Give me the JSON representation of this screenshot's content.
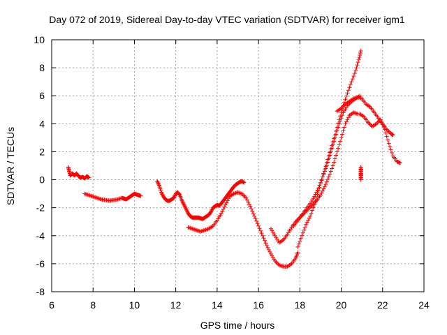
{
  "chart_data": {
    "type": "scatter",
    "title": "Day 072 of 2019, Sidereal Day-to-day VTEC variation (SDTVAR) for receiver igm1",
    "xlabel": "GPS time / hours",
    "ylabel": "SDTVAR / TECUs",
    "xlim": [
      6,
      24
    ],
    "ylim": [
      -8,
      10
    ],
    "xticks": [
      "6",
      "8",
      "10",
      "12",
      "14",
      "16",
      "18",
      "20",
      "22",
      "24"
    ],
    "yticks": [
      "-8",
      "-6",
      "-4",
      "-2",
      "0",
      "2",
      "4",
      "6",
      "8",
      "10"
    ],
    "grid": true,
    "marker": "+",
    "color": "#ff0000",
    "series": [
      {
        "name": "s1",
        "x": [
          6.8,
          6.85,
          6.9,
          7.0,
          7.1,
          7.2,
          7.3,
          7.4,
          7.5,
          7.6,
          7.7,
          7.8
        ],
        "y": [
          0.9,
          0.6,
          0.3,
          0.45,
          0.3,
          0.45,
          0.25,
          0.15,
          0.2,
          0.1,
          0.25,
          0.15
        ]
      },
      {
        "name": "s2",
        "x": [
          7.6,
          7.8,
          8.0,
          8.2,
          8.4,
          8.6,
          8.8,
          9.0,
          9.2,
          9.4,
          9.5,
          9.6,
          9.7,
          9.8,
          9.9,
          10.0,
          10.1,
          10.2,
          10.3
        ],
        "y": [
          -1.0,
          -1.1,
          -1.2,
          -1.3,
          -1.4,
          -1.45,
          -1.5,
          -1.45,
          -1.4,
          -1.3,
          -1.35,
          -1.4,
          -1.3,
          -1.2,
          -1.1,
          -1.0,
          -1.05,
          -1.1,
          -1.15
        ]
      },
      {
        "name": "s3",
        "x": [
          11.1,
          11.2,
          11.3,
          11.4,
          11.5,
          11.6,
          11.7,
          11.8,
          11.9,
          12.0,
          12.1,
          12.2,
          12.3,
          12.4,
          12.5,
          12.6,
          12.7,
          12.8,
          12.9,
          13.0,
          13.1,
          13.2,
          13.3,
          13.4,
          13.5,
          13.6,
          13.7,
          13.8,
          13.9,
          14.0,
          14.1,
          14.2,
          14.3,
          14.4,
          14.5,
          14.6,
          14.7,
          14.8,
          14.9,
          15.0,
          15.1,
          15.2,
          15.3
        ],
        "y": [
          -0.1,
          -0.4,
          -0.9,
          -1.2,
          -1.4,
          -1.5,
          -1.5,
          -1.4,
          -1.3,
          -1.0,
          -0.9,
          -1.1,
          -1.5,
          -1.8,
          -2.1,
          -2.4,
          -2.6,
          -2.7,
          -2.7,
          -2.7,
          -2.7,
          -2.75,
          -2.8,
          -2.7,
          -2.6,
          -2.5,
          -2.3,
          -2.0,
          -1.9,
          -1.8,
          -1.85,
          -1.7,
          -1.5,
          -1.3,
          -1.1,
          -0.9,
          -0.7,
          -0.5,
          -0.35,
          -0.25,
          -0.15,
          -0.1,
          -0.2
        ]
      },
      {
        "name": "s4",
        "x": [
          12.6,
          12.8,
          13.0,
          13.2,
          13.4,
          13.6,
          13.8,
          14.0,
          14.2,
          14.4,
          14.6,
          14.8,
          15.0,
          15.2,
          15.4,
          15.6,
          15.8,
          16.0,
          16.2,
          16.4,
          16.6,
          16.8,
          17.0,
          17.2,
          17.4,
          17.6,
          17.8,
          17.9
        ],
        "y": [
          -3.4,
          -3.5,
          -3.6,
          -3.7,
          -3.6,
          -3.5,
          -3.3,
          -2.9,
          -2.4,
          -1.8,
          -1.2,
          -1.0,
          -0.9,
          -1.0,
          -1.3,
          -1.9,
          -2.6,
          -3.3,
          -4.0,
          -4.7,
          -5.3,
          -5.8,
          -6.1,
          -6.2,
          -6.2,
          -6.0,
          -5.6,
          -5.2
        ]
      },
      {
        "name": "s5",
        "x": [
          16.6,
          16.8,
          17.0,
          17.2,
          17.4,
          17.6,
          17.8,
          18.0,
          18.2,
          18.4,
          18.6,
          18.8,
          19.0,
          19.2,
          19.4,
          19.6,
          19.8,
          20.0,
          20.2,
          20.4,
          20.6,
          20.8
        ],
        "y": [
          -3.5,
          -4.0,
          -4.5,
          -4.3,
          -3.9,
          -3.4,
          -3.0,
          -2.7,
          -2.4,
          -2.1,
          -1.8,
          -1.5,
          -1.1,
          -0.5,
          0.2,
          1.0,
          2.0,
          3.0,
          4.0,
          4.6,
          4.8,
          4.7
        ]
      },
      {
        "name": "s6",
        "x": [
          17.9,
          18.1,
          18.3,
          18.5,
          18.7,
          18.9,
          19.1,
          19.3,
          19.5,
          19.7,
          19.9,
          20.1,
          20.3,
          20.5,
          20.7,
          20.85,
          20.95
        ],
        "y": [
          -4.8,
          -4.0,
          -3.2,
          -2.6,
          -1.8,
          -0.8,
          0.2,
          1.2,
          2.2,
          3.2,
          4.3,
          5.3,
          6.2,
          7.0,
          7.8,
          8.6,
          9.2
        ]
      },
      {
        "name": "s7",
        "x": [
          17.7,
          17.9,
          18.1,
          18.3,
          18.5,
          18.7,
          18.9,
          19.1,
          19.3,
          19.5,
          19.7,
          19.9,
          20.1,
          20.3,
          20.5,
          20.7,
          20.9
        ],
        "y": [
          -3.3,
          -2.9,
          -2.5,
          -2.1,
          -1.7,
          -1.2,
          -0.6,
          0.2,
          1.0,
          2.0,
          3.0,
          4.0,
          4.8,
          5.3,
          5.6,
          5.8,
          6.0
        ]
      },
      {
        "name": "s8",
        "x": [
          19.8,
          20.0,
          20.2,
          20.4,
          20.6,
          20.8,
          21.0,
          21.2,
          21.4,
          21.6,
          21.8,
          22.0,
          22.2,
          22.4,
          22.5
        ],
        "y": [
          4.9,
          5.1,
          5.4,
          5.6,
          5.8,
          5.9,
          5.8,
          5.4,
          5.2,
          4.8,
          4.4,
          4.0,
          3.6,
          3.3,
          3.2
        ]
      },
      {
        "name": "s9",
        "x": [
          20.9,
          21.1,
          21.3,
          21.5,
          21.7,
          21.9,
          22.1,
          22.3,
          22.5,
          22.7,
          22.85
        ],
        "y": [
          4.7,
          4.5,
          4.1,
          3.8,
          4.0,
          4.3,
          3.6,
          2.6,
          1.7,
          1.3,
          1.2
        ]
      },
      {
        "name": "s10",
        "x": [
          20.95,
          20.95,
          20.95,
          20.95,
          20.95,
          20.95,
          20.95
        ],
        "y": [
          0.0,
          0.3,
          0.6,
          0.9,
          0.15,
          0.45,
          0.75
        ]
      }
    ]
  }
}
